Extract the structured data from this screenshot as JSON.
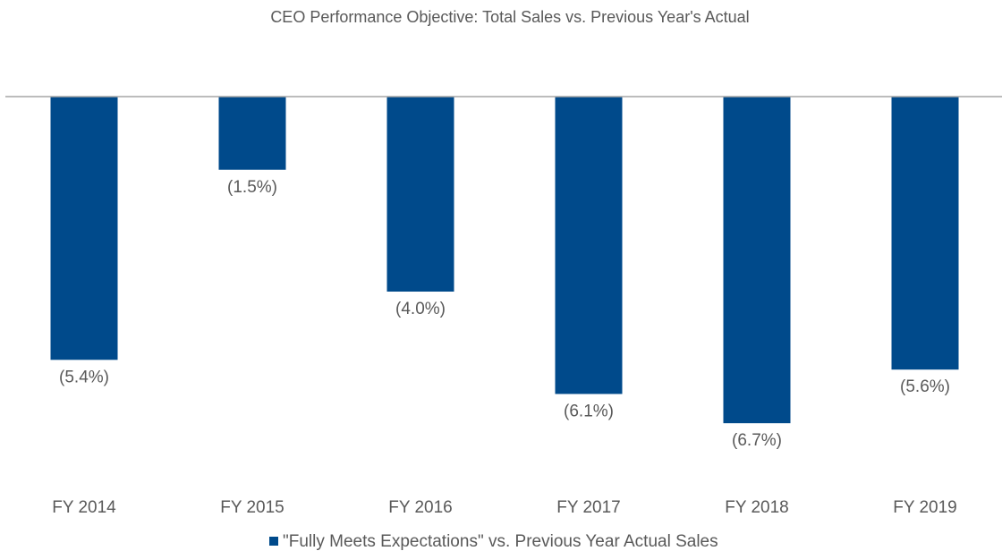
{
  "chart_data": {
    "type": "bar",
    "title": "CEO Performance Objective: Total Sales vs. Previous Year's Actual",
    "categories": [
      "FY 2014",
      "FY 2015",
      "FY 2016",
      "FY 2017",
      "FY 2018",
      "FY 2019"
    ],
    "series": [
      {
        "name": "\"Fully Meets Expectations\" vs. Previous Year Actual Sales",
        "color": "#004a8b",
        "values": [
          -5.4,
          -1.5,
          -4.0,
          -6.1,
          -6.7,
          -5.6
        ],
        "value_labels": [
          "(5.4%)",
          "(1.5%)",
          "(4.0%)",
          "(6.1%)",
          "(6.7%)",
          "(5.6%)"
        ]
      }
    ],
    "ylim": [
      -8,
      0
    ],
    "legend": "bottom"
  }
}
